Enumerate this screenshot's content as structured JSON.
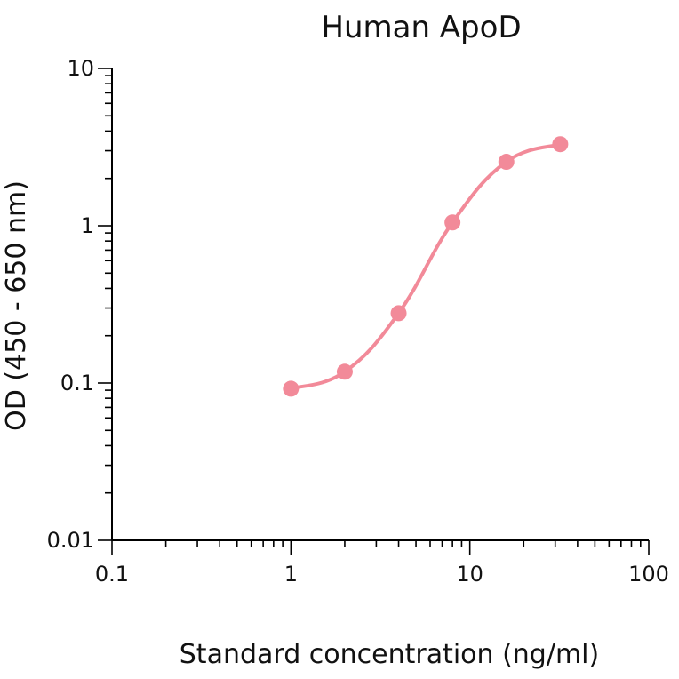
{
  "chart_data": {
    "type": "line",
    "title": "Human ApoD",
    "xlabel": "Standard concentration (ng/ml)",
    "ylabel": "OD (450 - 650 nm)",
    "x_scale": "log",
    "y_scale": "log",
    "xlim": [
      0.1,
      100
    ],
    "ylim": [
      0.01,
      10
    ],
    "x_tick_labels": [
      "0.1",
      "1",
      "10",
      "100"
    ],
    "y_tick_labels": [
      "0.01",
      "0.1",
      "1",
      "10"
    ],
    "grid": false,
    "legend": "none",
    "series": [
      {
        "x": [
          1,
          2,
          4,
          8,
          16,
          32
        ],
        "y": [
          0.092,
          0.118,
          0.278,
          1.05,
          2.55,
          3.3
        ]
      }
    ],
    "colors": {
      "series": "#f28a99",
      "axis": "#000000"
    }
  }
}
